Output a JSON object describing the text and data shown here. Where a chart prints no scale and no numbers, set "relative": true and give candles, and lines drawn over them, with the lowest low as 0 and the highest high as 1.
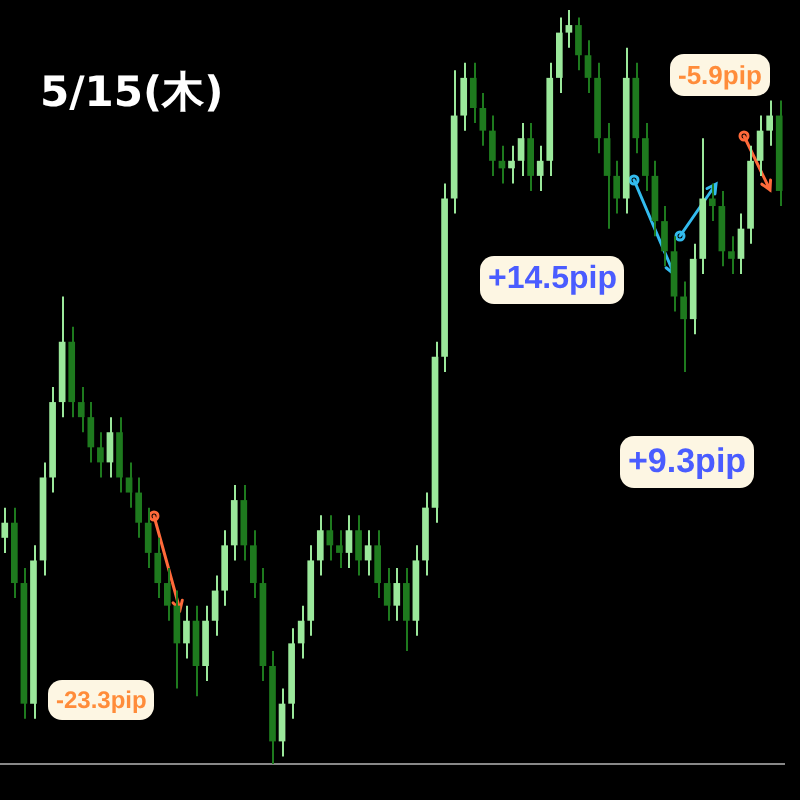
{
  "chart_data": {
    "type": "candlestick",
    "title": "5/15(木)",
    "relative": true,
    "categories": [
      null,
      null,
      null,
      null,
      null,
      null,
      null,
      null,
      null,
      null,
      null,
      null,
      null,
      null,
      null,
      null,
      null,
      null,
      null,
      null,
      null,
      null,
      null,
      null,
      null,
      null,
      null,
      null,
      null,
      null,
      null,
      null,
      null,
      null,
      null,
      null,
      null,
      null,
      null,
      null,
      null,
      null,
      null,
      null,
      null,
      null,
      null,
      null,
      null,
      null,
      null,
      null,
      null,
      null,
      null,
      null,
      null,
      null,
      null,
      null,
      null,
      null,
      null,
      null,
      null,
      null,
      null,
      null,
      null,
      null,
      null,
      null,
      null,
      null,
      null,
      null,
      null,
      null,
      null,
      null,
      null,
      null
    ],
    "ohlc": [
      [
        0.3,
        0.34,
        0.28,
        0.32
      ],
      [
        0.32,
        0.34,
        0.22,
        0.24
      ],
      [
        0.24,
        0.26,
        0.06,
        0.08
      ],
      [
        0.08,
        0.29,
        0.06,
        0.27
      ],
      [
        0.27,
        0.4,
        0.25,
        0.38
      ],
      [
        0.38,
        0.5,
        0.36,
        0.48
      ],
      [
        0.48,
        0.62,
        0.46,
        0.56
      ],
      [
        0.56,
        0.58,
        0.46,
        0.48
      ],
      [
        0.48,
        0.5,
        0.44,
        0.46
      ],
      [
        0.46,
        0.48,
        0.4,
        0.42
      ],
      [
        0.42,
        0.44,
        0.38,
        0.4
      ],
      [
        0.4,
        0.46,
        0.38,
        0.44
      ],
      [
        0.44,
        0.46,
        0.36,
        0.38
      ],
      [
        0.38,
        0.4,
        0.34,
        0.36
      ],
      [
        0.36,
        0.38,
        0.3,
        0.32
      ],
      [
        0.32,
        0.34,
        0.26,
        0.28
      ],
      [
        0.28,
        0.3,
        0.22,
        0.24
      ],
      [
        0.24,
        0.26,
        0.19,
        0.21
      ],
      [
        0.21,
        0.23,
        0.1,
        0.16
      ],
      [
        0.16,
        0.21,
        0.14,
        0.19
      ],
      [
        0.19,
        0.21,
        0.09,
        0.13
      ],
      [
        0.13,
        0.21,
        0.11,
        0.19
      ],
      [
        0.19,
        0.25,
        0.17,
        0.23
      ],
      [
        0.23,
        0.31,
        0.21,
        0.29
      ],
      [
        0.29,
        0.37,
        0.27,
        0.35
      ],
      [
        0.35,
        0.37,
        0.27,
        0.29
      ],
      [
        0.29,
        0.31,
        0.22,
        0.24
      ],
      [
        0.24,
        0.26,
        0.11,
        0.13
      ],
      [
        0.13,
        0.15,
        0.0,
        0.03
      ],
      [
        0.03,
        0.1,
        0.01,
        0.08
      ],
      [
        0.08,
        0.18,
        0.06,
        0.16
      ],
      [
        0.16,
        0.21,
        0.14,
        0.19
      ],
      [
        0.19,
        0.29,
        0.17,
        0.27
      ],
      [
        0.27,
        0.33,
        0.25,
        0.31
      ],
      [
        0.31,
        0.33,
        0.27,
        0.29
      ],
      [
        0.29,
        0.31,
        0.26,
        0.28
      ],
      [
        0.28,
        0.33,
        0.26,
        0.31
      ],
      [
        0.31,
        0.33,
        0.25,
        0.27
      ],
      [
        0.27,
        0.31,
        0.25,
        0.29
      ],
      [
        0.29,
        0.31,
        0.22,
        0.24
      ],
      [
        0.24,
        0.26,
        0.19,
        0.21
      ],
      [
        0.21,
        0.26,
        0.19,
        0.24
      ],
      [
        0.24,
        0.26,
        0.15,
        0.19
      ],
      [
        0.19,
        0.29,
        0.17,
        0.27
      ],
      [
        0.27,
        0.36,
        0.25,
        0.34
      ],
      [
        0.34,
        0.56,
        0.32,
        0.54
      ],
      [
        0.54,
        0.77,
        0.52,
        0.75
      ],
      [
        0.75,
        0.92,
        0.73,
        0.86
      ],
      [
        0.86,
        0.93,
        0.84,
        0.91
      ],
      [
        0.91,
        0.93,
        0.85,
        0.87
      ],
      [
        0.87,
        0.89,
        0.82,
        0.84
      ],
      [
        0.84,
        0.86,
        0.78,
        0.8
      ],
      [
        0.8,
        0.82,
        0.77,
        0.79
      ],
      [
        0.79,
        0.82,
        0.77,
        0.8
      ],
      [
        0.8,
        0.85,
        0.78,
        0.83
      ],
      [
        0.83,
        0.85,
        0.76,
        0.78
      ],
      [
        0.78,
        0.82,
        0.76,
        0.8
      ],
      [
        0.8,
        0.93,
        0.78,
        0.91
      ],
      [
        0.91,
        0.99,
        0.89,
        0.97
      ],
      [
        0.97,
        1.0,
        0.95,
        0.98
      ],
      [
        0.98,
        0.99,
        0.92,
        0.94
      ],
      [
        0.94,
        0.96,
        0.89,
        0.91
      ],
      [
        0.91,
        0.93,
        0.81,
        0.83
      ],
      [
        0.83,
        0.85,
        0.71,
        0.78
      ],
      [
        0.78,
        0.8,
        0.73,
        0.75
      ],
      [
        0.75,
        0.95,
        0.73,
        0.91
      ],
      [
        0.91,
        0.93,
        0.81,
        0.83
      ],
      [
        0.83,
        0.85,
        0.76,
        0.78
      ],
      [
        0.78,
        0.8,
        0.7,
        0.72
      ],
      [
        0.72,
        0.74,
        0.66,
        0.68
      ],
      [
        0.68,
        0.7,
        0.6,
        0.62
      ],
      [
        0.62,
        0.64,
        0.52,
        0.59
      ],
      [
        0.59,
        0.69,
        0.57,
        0.67
      ],
      [
        0.67,
        0.83,
        0.65,
        0.75
      ],
      [
        0.75,
        0.77,
        0.72,
        0.74
      ],
      [
        0.74,
        0.76,
        0.66,
        0.68
      ],
      [
        0.68,
        0.7,
        0.65,
        0.67
      ],
      [
        0.67,
        0.73,
        0.65,
        0.71
      ],
      [
        0.71,
        0.82,
        0.69,
        0.8
      ],
      [
        0.8,
        0.86,
        0.78,
        0.84
      ],
      [
        0.84,
        0.88,
        0.82,
        0.86
      ],
      [
        0.86,
        0.88,
        0.74,
        0.76
      ]
    ],
    "colors": [
      "#9be89b",
      "#1e7a1e",
      "#1e7a1e",
      "#9be89b",
      "#9be89b",
      "#9be89b",
      "#9be89b",
      "#1e7a1e",
      "#1e7a1e",
      "#1e7a1e",
      "#1e7a1e",
      "#9be89b",
      "#1e7a1e",
      "#1e7a1e",
      "#1e7a1e",
      "#1e7a1e",
      "#1e7a1e",
      "#1e7a1e",
      "#1e7a1e",
      "#9be89b",
      "#1e7a1e",
      "#9be89b",
      "#9be89b",
      "#9be89b",
      "#9be89b",
      "#1e7a1e",
      "#1e7a1e",
      "#1e7a1e",
      "#1e7a1e",
      "#9be89b",
      "#9be89b",
      "#9be89b",
      "#9be89b",
      "#9be89b",
      "#1e7a1e",
      "#1e7a1e",
      "#9be89b",
      "#1e7a1e",
      "#9be89b",
      "#1e7a1e",
      "#1e7a1e",
      "#9be89b",
      "#1e7a1e",
      "#9be89b",
      "#9be89b",
      "#9be89b",
      "#9be89b",
      "#9be89b",
      "#9be89b",
      "#1e7a1e",
      "#1e7a1e",
      "#1e7a1e",
      "#1e7a1e",
      "#9be89b",
      "#9be89b",
      "#1e7a1e",
      "#9be89b",
      "#9be89b",
      "#9be89b",
      "#9be89b",
      "#1e7a1e",
      "#1e7a1e",
      "#1e7a1e",
      "#1e7a1e",
      "#1e7a1e",
      "#9be89b",
      "#1e7a1e",
      "#1e7a1e",
      "#1e7a1e",
      "#1e7a1e",
      "#1e7a1e",
      "#1e7a1e",
      "#9be89b",
      "#9be89b",
      "#1e7a1e",
      "#1e7a1e",
      "#1e7a1e",
      "#9be89b",
      "#9be89b",
      "#9be89b",
      "#9be89b",
      "#1e7a1e"
    ],
    "annotations": [
      "+14.5pip",
      "+9.3pip",
      "-23.3pip",
      "-5.9pip"
    ]
  }
}
